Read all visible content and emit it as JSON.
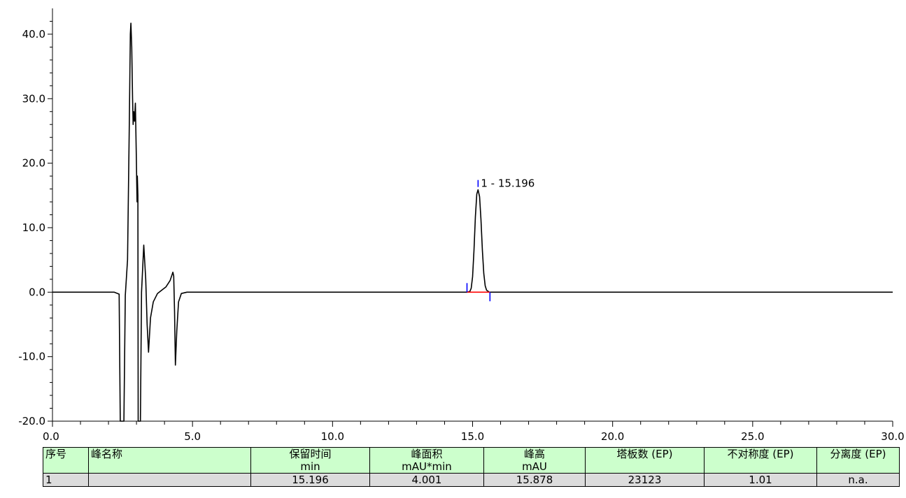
{
  "chart_data": {
    "type": "line",
    "title": "",
    "xlabel": "",
    "ylabel": "",
    "xlim": [
      0,
      30
    ],
    "ylim": [
      -20,
      44
    ],
    "x_ticks": [
      "0.0",
      "5.0",
      "10.0",
      "15.0",
      "20.0",
      "25.0",
      "30.0"
    ],
    "y_ticks": [
      "-20.0",
      "-10.0",
      "0.0",
      "10.0",
      "20.0",
      "30.0",
      "40.0"
    ],
    "grid": false,
    "series": [
      {
        "name": "",
        "color": "#000000",
        "points": [
          [
            0.0,
            0.0
          ],
          [
            2.2,
            0.0
          ],
          [
            2.38,
            -0.3
          ],
          [
            2.42,
            -20.0
          ],
          [
            2.55,
            -20.0
          ],
          [
            2.6,
            -0.5
          ],
          [
            2.68,
            5.0
          ],
          [
            2.74,
            25.0
          ],
          [
            2.78,
            40.0
          ],
          [
            2.8,
            41.7
          ],
          [
            2.83,
            38.0
          ],
          [
            2.86,
            30.0
          ],
          [
            2.88,
            26.0
          ],
          [
            2.9,
            28.0
          ],
          [
            2.93,
            26.5
          ],
          [
            2.96,
            29.3
          ],
          [
            2.99,
            22.0
          ],
          [
            3.02,
            14.0
          ],
          [
            3.03,
            18.0
          ],
          [
            3.05,
            15.0
          ],
          [
            3.06,
            -20.0
          ],
          [
            3.14,
            -20.0
          ],
          [
            3.18,
            0.0
          ],
          [
            3.26,
            7.3
          ],
          [
            3.33,
            2.0
          ],
          [
            3.38,
            -5.0
          ],
          [
            3.43,
            -9.3
          ],
          [
            3.5,
            -4.0
          ],
          [
            3.6,
            -1.5
          ],
          [
            3.75,
            -0.2
          ],
          [
            3.9,
            0.3
          ],
          [
            4.05,
            0.8
          ],
          [
            4.2,
            1.8
          ],
          [
            4.3,
            3.1
          ],
          [
            4.33,
            2.5
          ],
          [
            4.36,
            -3.0
          ],
          [
            4.39,
            -11.3
          ],
          [
            4.44,
            -6.0
          ],
          [
            4.5,
            -1.5
          ],
          [
            4.6,
            -0.2
          ],
          [
            4.8,
            0.0
          ],
          [
            14.8,
            0.0
          ],
          [
            14.9,
            0.1
          ],
          [
            14.95,
            0.6
          ],
          [
            15.0,
            2.4
          ],
          [
            15.05,
            6.5
          ],
          [
            15.1,
            11.7
          ],
          [
            15.15,
            15.2
          ],
          [
            15.196,
            15.878
          ],
          [
            15.25,
            14.8
          ],
          [
            15.3,
            11.2
          ],
          [
            15.35,
            6.5
          ],
          [
            15.4,
            2.9
          ],
          [
            15.45,
            1.0
          ],
          [
            15.5,
            0.3
          ],
          [
            15.6,
            0.0
          ],
          [
            30.0,
            0.0
          ]
        ]
      }
    ],
    "peaks": [
      {
        "label": "1 - 15.196",
        "rt": 15.196,
        "height": 15.878,
        "start": 14.8,
        "end": 15.62
      }
    ],
    "colors": {
      "trace": "#000000",
      "baseline": "#ff0000",
      "marker": "#0000ff"
    }
  },
  "table": {
    "headers": [
      "序号",
      "峰名称",
      "保留时间",
      "峰面积",
      "峰高",
      "塔板数 (EP)",
      "不对称度 (EP)",
      "分离度 (EP)"
    ],
    "units": [
      "",
      "",
      "min",
      "mAU*min",
      "mAU",
      "",
      "",
      ""
    ],
    "rows": [
      [
        "1",
        "",
        "15.196",
        "4.001",
        "15.878",
        "23123",
        "1.01",
        "n.a."
      ]
    ]
  }
}
